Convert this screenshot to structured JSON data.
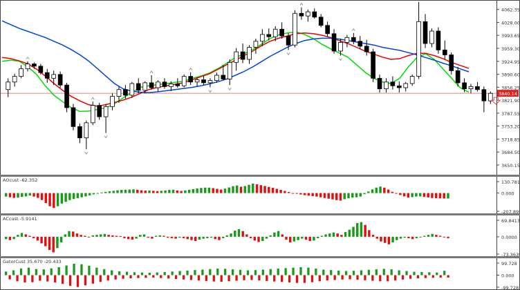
{
  "colors": {
    "bull_fill": "#ffffff",
    "bear_fill": "#000000",
    "candle_outline": "#000000",
    "ma_fast": "#00dd00",
    "ma_mid": "#ee0000",
    "ma_slow": "#0044dd",
    "osc_up": "#1a9a1a",
    "osc_down": "#e01010",
    "price_line": "#e08080",
    "price_tag": "#dd2222",
    "fractal": "#999999",
    "arrow": "#ee4444"
  },
  "chart_data": [
    {
      "type": "candlestick",
      "ylim": [
        3630,
        4080
      ],
      "y_ticks": [
        "4062.35",
        "4028.00",
        "3993.65",
        "3959.30",
        "3924.95",
        "3890.60",
        "3856.25",
        "3821.90",
        "3787.55",
        "3753.20",
        "3718.85",
        "3684.50",
        "3650.15"
      ],
      "current_price": "3840.14",
      "candles": [
        [
          3850,
          3880,
          3830,
          3870
        ],
        [
          3870,
          3892,
          3858,
          3885
        ],
        [
          3885,
          3915,
          3880,
          3905
        ],
        [
          3905,
          3925,
          3898,
          3918
        ],
        [
          3918,
          3922,
          3905,
          3912
        ],
        [
          3912,
          3918,
          3890,
          3895
        ],
        [
          3895,
          3905,
          3868,
          3880
        ],
        [
          3880,
          3900,
          3862,
          3890
        ],
        [
          3890,
          3898,
          3855,
          3862
        ],
        [
          3862,
          3868,
          3790,
          3802
        ],
        [
          3802,
          3812,
          3742,
          3752
        ],
        [
          3752,
          3760,
          3708,
          3722
        ],
        [
          3722,
          3768,
          3692,
          3762
        ],
        [
          3762,
          3818,
          3756,
          3808
        ],
        [
          3808,
          3815,
          3770,
          3778
        ],
        [
          3778,
          3812,
          3735,
          3805
        ],
        [
          3805,
          3840,
          3795,
          3832
        ],
        [
          3832,
          3858,
          3815,
          3850
        ],
        [
          3850,
          3862,
          3826,
          3835
        ],
        [
          3835,
          3870,
          3828,
          3866
        ],
        [
          3866,
          3880,
          3840,
          3848
        ],
        [
          3848,
          3872,
          3840,
          3868
        ],
        [
          3868,
          3888,
          3850,
          3855
        ],
        [
          3855,
          3875,
          3845,
          3870
        ],
        [
          3870,
          3880,
          3852,
          3858
        ],
        [
          3858,
          3872,
          3846,
          3865
        ],
        [
          3865,
          3880,
          3855,
          3860
        ],
        [
          3860,
          3890,
          3856,
          3885
        ],
        [
          3885,
          3896,
          3862,
          3870
        ],
        [
          3870,
          3882,
          3858,
          3876
        ],
        [
          3876,
          3886,
          3862,
          3868
        ],
        [
          3868,
          3880,
          3856,
          3874
        ],
        [
          3874,
          3895,
          3868,
          3888
        ],
        [
          3888,
          3915,
          3875,
          3878
        ],
        [
          3878,
          3930,
          3862,
          3922
        ],
        [
          3922,
          3960,
          3900,
          3950
        ],
        [
          3950,
          3972,
          3920,
          3930
        ],
        [
          3930,
          3968,
          3918,
          3962
        ],
        [
          3962,
          3985,
          3945,
          3978
        ],
        [
          3978,
          4010,
          3965,
          3996
        ],
        [
          3996,
          4012,
          3980,
          3990
        ],
        [
          3990,
          4018,
          3978,
          4010
        ],
        [
          4010,
          4028,
          3985,
          3992
        ],
        [
          3992,
          4000,
          3955,
          3968
        ],
        [
          3968,
          4060,
          3962,
          4052
        ],
        [
          4052,
          4068,
          4035,
          4045
        ],
        [
          4045,
          4062,
          4030,
          4056
        ],
        [
          4056,
          4065,
          4038,
          4042
        ],
        [
          4042,
          4050,
          4015,
          4020
        ],
        [
          4020,
          4030,
          3990,
          3998
        ],
        [
          3998,
          4010,
          3945,
          3952
        ],
        [
          3952,
          3985,
          3940,
          3975
        ],
        [
          3975,
          3995,
          3962,
          3988
        ],
        [
          3988,
          4000,
          3970,
          3978
        ],
        [
          3978,
          3992,
          3958,
          3965
        ],
        [
          3965,
          3982,
          3940,
          3950
        ],
        [
          3950,
          3958,
          3870,
          3880
        ],
        [
          3880,
          3890,
          3842,
          3852
        ],
        [
          3852,
          3880,
          3842,
          3870
        ],
        [
          3870,
          3885,
          3850,
          3860
        ],
        [
          3860,
          3872,
          3842,
          3855
        ],
        [
          3855,
          3870,
          3845,
          3866
        ],
        [
          3866,
          3890,
          3860,
          3885
        ],
        [
          3885,
          4082,
          3878,
          4030
        ],
        [
          4030,
          4050,
          3960,
          3972
        ],
        [
          3972,
          4012,
          3962,
          4005
        ],
        [
          4005,
          4015,
          3945,
          3955
        ],
        [
          3955,
          3980,
          3930,
          3942
        ],
        [
          3942,
          3948,
          3890,
          3900
        ],
        [
          3900,
          3910,
          3858,
          3868
        ],
        [
          3868,
          3880,
          3843,
          3852
        ],
        [
          3852,
          3865,
          3840,
          3858
        ],
        [
          3858,
          3870,
          3845,
          3850
        ],
        [
          3850,
          3858,
          3790,
          3820
        ],
        [
          3820,
          3845,
          3812,
          3840
        ]
      ],
      "indicators": [
        {
          "name": "fast",
          "values": [
            3925,
            3928,
            3925,
            3910,
            3890,
            3860,
            3835,
            3818,
            3802,
            3792,
            3793,
            3797,
            3802,
            3812,
            3828,
            3842,
            3856,
            3860,
            3863,
            3866,
            3869,
            3872,
            3880,
            3886,
            3894,
            3906,
            3920,
            3935,
            3945,
            3956,
            3970,
            3985,
            3995,
            4000,
            4003,
            3996,
            3985,
            3970,
            3958,
            3947,
            3936,
            3916,
            3896,
            3880,
            3870,
            3866,
            3880,
            3910,
            3935,
            3945,
            3930,
            3905,
            3880,
            3855,
            3843
          ]
        },
        {
          "name": "mid",
          "values": [
            3935,
            3932,
            3926,
            3918,
            3904,
            3886,
            3866,
            3848,
            3832,
            3820,
            3810,
            3806,
            3810,
            3816,
            3822,
            3830,
            3840,
            3850,
            3856,
            3860,
            3864,
            3868,
            3876,
            3884,
            3892,
            3904,
            3916,
            3928,
            3940,
            3952,
            3966,
            3978,
            3986,
            3992,
            3998,
            4000,
            3998,
            3994,
            3988,
            3980,
            3972,
            3962,
            3952,
            3944,
            3936,
            3930,
            3932,
            3940,
            3946,
            3946,
            3940,
            3932,
            3922,
            3914,
            3906
          ]
        },
        {
          "name": "slow",
          "values": [
            4032,
            4022,
            4012,
            4004,
            3996,
            3988,
            3978,
            3968,
            3956,
            3942,
            3926,
            3906,
            3886,
            3866,
            3852,
            3846,
            3843,
            3842,
            3844,
            3847,
            3850,
            3853,
            3856,
            3860,
            3865,
            3871,
            3878,
            3888,
            3898,
            3910,
            3924,
            3938,
            3950,
            3962,
            3972,
            3980,
            3984,
            3986,
            3986,
            3984,
            3980,
            3976,
            3972,
            3968,
            3962,
            3958,
            3954,
            3948,
            3942,
            3935,
            3928,
            3920,
            3913,
            3905,
            3897
          ]
        }
      ]
    },
    {
      "type": "bar",
      "label": "AOcust -62.352",
      "ylim": [
        -207.899,
        130.781
      ],
      "y_ticks": [
        "130.781",
        "0.000",
        "-207.899"
      ],
      "values": [
        -40,
        -48,
        -55,
        -52,
        -44,
        -38,
        -28,
        -40,
        -55,
        -80,
        -115,
        -150,
        -170,
        -150,
        -120,
        -100,
        -80,
        -68,
        -58,
        -48,
        -38,
        -26,
        -14,
        -4,
        6,
        14,
        20,
        26,
        32,
        36,
        38,
        40,
        42,
        38,
        32,
        28,
        30,
        26,
        22,
        26,
        30,
        36,
        38,
        30,
        24,
        30,
        38,
        46,
        52,
        58,
        62,
        62,
        56,
        48,
        40,
        50,
        64,
        78,
        86,
        72,
        80,
        94,
        108,
        100,
        90,
        80,
        70,
        60,
        48,
        36,
        24,
        12,
        0,
        -8,
        -16,
        -24,
        -30,
        -34,
        -40,
        -48,
        -56,
        -64,
        -72,
        -80,
        -86,
        -70,
        -60,
        -52,
        -48,
        -40,
        -12,
        18,
        42,
        62,
        74,
        62,
        40,
        14,
        -6,
        -22,
        -38,
        -52,
        -46,
        -40,
        -38,
        -44,
        -50,
        -56,
        -58,
        -60,
        -62,
        -62
      ]
    },
    {
      "type": "bar",
      "label": "ACcust -5.9141",
      "ylim": [
        -73.3639,
        69.8413
      ],
      "y_ticks": [
        "69.8413",
        "0.0000",
        "-73.3639"
      ],
      "values": [
        -10,
        -14,
        -10,
        8,
        16,
        10,
        4,
        -6,
        -16,
        -28,
        -40,
        -56,
        -66,
        -48,
        -24,
        10,
        24,
        22,
        14,
        8,
        4,
        0,
        6,
        8,
        10,
        12,
        8,
        6,
        4,
        3,
        -6,
        -10,
        -12,
        -8,
        8,
        10,
        -4,
        -8,
        4,
        6,
        4,
        -4,
        -6,
        -8,
        -4,
        -6,
        -10,
        -14,
        -18,
        -12,
        -8,
        -6,
        -4,
        -10,
        -14,
        -6,
        6,
        14,
        26,
        32,
        24,
        10,
        -6,
        -16,
        -22,
        -18,
        -8,
        6,
        18,
        24,
        10,
        -12,
        -24,
        -20,
        -14,
        -8,
        -12,
        -18,
        -16,
        -6,
        4,
        10,
        14,
        18,
        14,
        8,
        20,
        30,
        42,
        58,
        62,
        50,
        28,
        8,
        -8,
        -20,
        -26,
        -32,
        -24,
        -14,
        -8,
        -4,
        -6,
        -10,
        -6,
        -2,
        4,
        8,
        12,
        8,
        4,
        -2,
        -6
      ]
    },
    {
      "type": "bar",
      "label": "GatorCust 35.670 -20.433",
      "ylim": [
        -99.728,
        99.728
      ],
      "y_ticks": [
        "99.728",
        "0.000",
        "-99.728"
      ],
      "values": [
        30,
        -35,
        40,
        -50,
        55,
        -60,
        62,
        -58,
        50,
        -46,
        48,
        -52,
        56,
        -60,
        66,
        -72,
        80,
        -88,
        94,
        -98,
        90,
        -84,
        78,
        -70,
        62,
        -56,
        50,
        -44,
        40,
        -36,
        32,
        -30,
        28,
        -26,
        24,
        -24,
        22,
        -22,
        20,
        -20,
        22,
        -24,
        26,
        -28,
        30,
        -32,
        34,
        -36,
        38,
        -40,
        42,
        -44,
        46,
        -48,
        50,
        -52,
        54,
        -54,
        52,
        -50,
        48,
        -46,
        44,
        -42,
        40,
        -40,
        42,
        -44,
        46,
        -48,
        50,
        -52,
        54,
        -56,
        58,
        -60,
        62,
        -64,
        66,
        -64,
        62,
        -58,
        54,
        -50,
        46,
        -44,
        42,
        -40,
        38,
        -36,
        34,
        -34,
        36,
        -38,
        40,
        -42,
        44,
        -46,
        48,
        -50,
        52,
        -50,
        48,
        -44,
        40,
        -36,
        34,
        -30,
        28,
        -26,
        26,
        -24,
        24,
        -22,
        22,
        -20,
        36,
        -20
      ]
    }
  ]
}
